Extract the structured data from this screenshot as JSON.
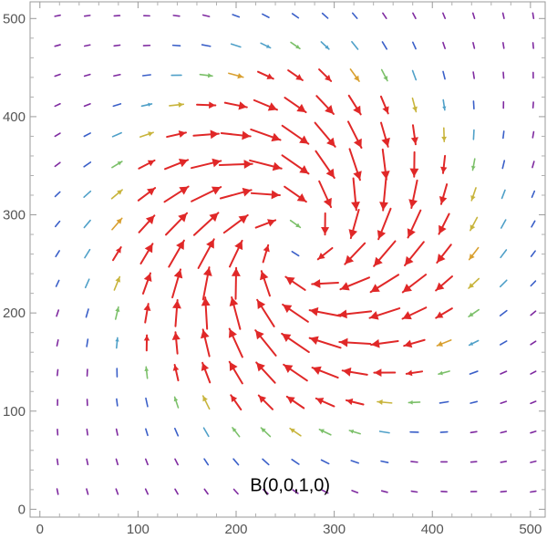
{
  "chart_data": {
    "type": "vector_field",
    "title": "",
    "xlabel": "",
    "ylabel": "",
    "xlim": [
      -10,
      515
    ],
    "ylim": [
      -8,
      517
    ],
    "x_ticks": [
      0,
      100,
      200,
      300,
      400,
      500
    ],
    "y_ticks": [
      0,
      100,
      200,
      300,
      400,
      500
    ],
    "x_tick_labels": [
      "0",
      "100",
      "200",
      "300",
      "400",
      "500"
    ],
    "y_tick_labels": [
      "0",
      "100",
      "200",
      "300",
      "400",
      "500"
    ],
    "annotation": "B(0,0,1,0)",
    "annotation_position": {
      "x": 255,
      "y": 25
    },
    "grid": false,
    "field": {
      "description": "swirling field around a center; long arrows near the center, small arrows far away",
      "center": [
        260,
        270
      ],
      "grid_start": 18,
      "grid_step": 30.3,
      "grid_count": 17
    },
    "color_scale": [
      "#7f2aa0",
      "#3a5fc8",
      "#4fa0c8",
      "#7cc06a",
      "#c8b43c",
      "#d9a030",
      "#e02828"
    ]
  }
}
